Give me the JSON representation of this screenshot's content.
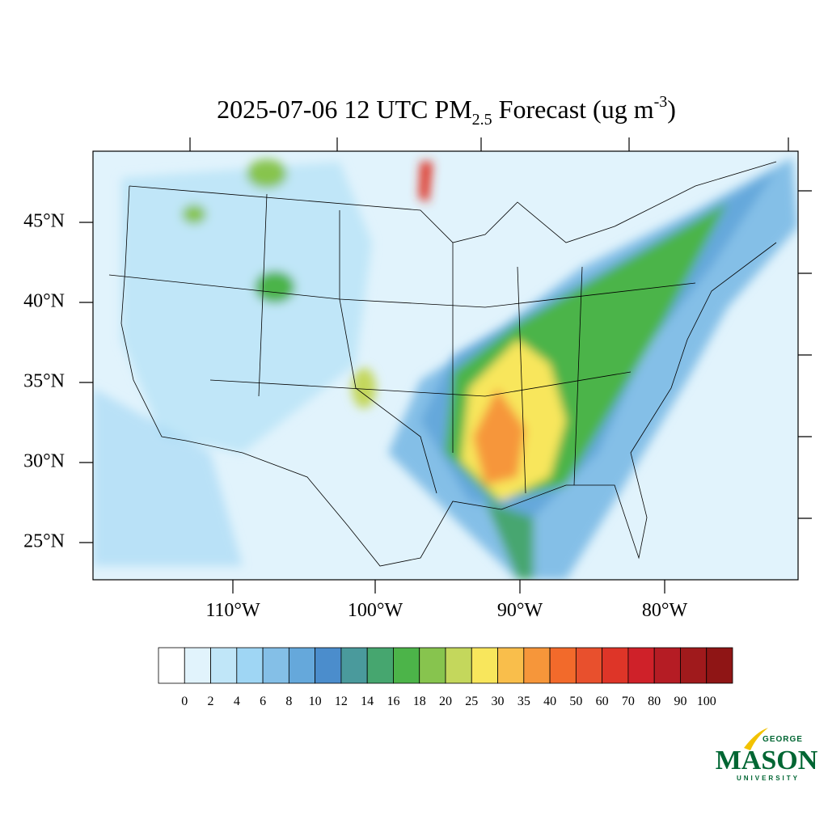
{
  "title": {
    "prefix": "2025-07-06 12 UTC PM",
    "subscript": "2.5",
    "middle": " Forecast (ug m",
    "superscript": "-3",
    "suffix": ")"
  },
  "latitude_labels": [
    "45°N",
    "40°N",
    "35°N",
    "30°N",
    "25°N"
  ],
  "longitude_labels": [
    "110°W",
    "100°W",
    "90°W",
    "80°W"
  ],
  "colorbar": {
    "levels": [
      0,
      2,
      4,
      6,
      8,
      10,
      12,
      14,
      16,
      18,
      20,
      25,
      30,
      35,
      40,
      50,
      60,
      70,
      80,
      90,
      100
    ],
    "colors": [
      "#ffffff",
      "#e1f3fc",
      "#c0e6f8",
      "#9fd6f4",
      "#84bfe7",
      "#65a8db",
      "#4b8dcc",
      "#4a9a9c",
      "#46a66f",
      "#4cb449",
      "#87c44e",
      "#c4d75c",
      "#f8e65c",
      "#f9be4b",
      "#f6963a",
      "#f26a2b",
      "#e8502d",
      "#de3528",
      "#cf2129",
      "#b51c24",
      "#a01a1c",
      "#8f1515"
    ]
  },
  "logo": {
    "top": "GEORGE",
    "name": "MASON",
    "bottom": "UNIVERSITY"
  }
}
